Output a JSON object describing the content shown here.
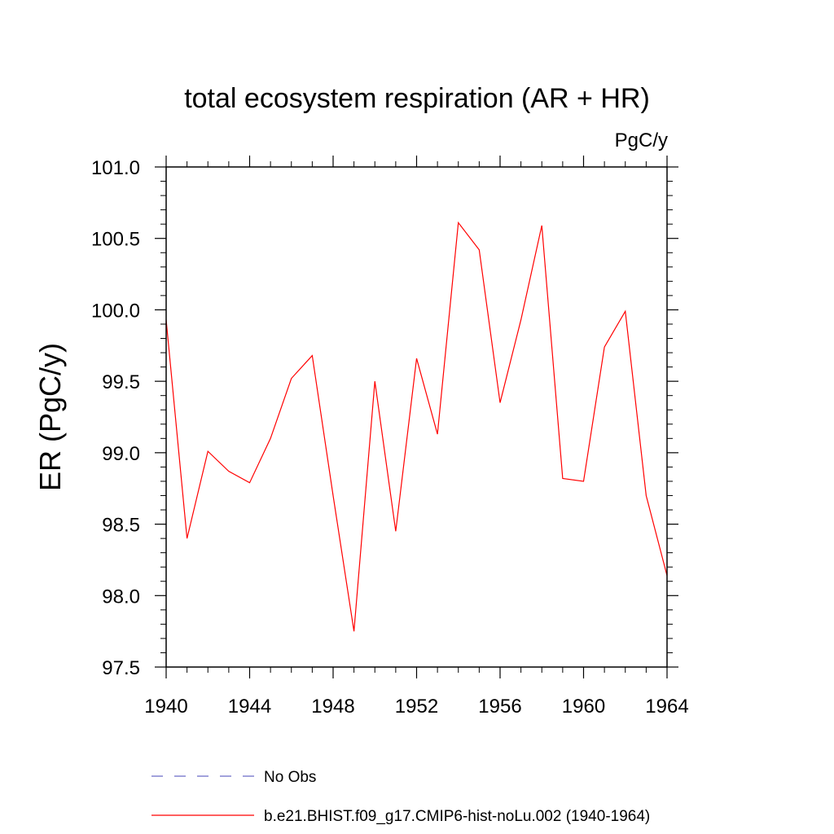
{
  "chart_data": {
    "type": "line",
    "title": "total ecosystem respiration (AR + HR)",
    "units": "PgC/y",
    "ylabel": "ER  (PgC/y)",
    "xlabel": "",
    "xlim": [
      1940,
      1964
    ],
    "ylim": [
      97.5,
      101.0
    ],
    "xticks": [
      1940,
      1944,
      1948,
      1952,
      1956,
      1960,
      1964
    ],
    "xtick_labels": [
      "1940",
      "1944",
      "1948",
      "1952",
      "1956",
      "1960",
      "1964"
    ],
    "yticks": [
      97.5,
      98.0,
      98.5,
      99.0,
      99.5,
      100.0,
      100.5,
      101.0
    ],
    "ytick_labels": [
      "97.5",
      "98.0",
      "98.5",
      "99.0",
      "99.5",
      "100.0",
      "100.5",
      "101.0"
    ],
    "grid": false,
    "legend_position": "bottom",
    "series": [
      {
        "name": "No Obs",
        "color": "#6a6ac8",
        "style": "dashed",
        "x": [],
        "y": []
      },
      {
        "name": "b.e21.BHIST.f09_g17.CMIP6-hist-noLu.002 (1940-1964)",
        "color": "#ff0000",
        "style": "solid",
        "x": [
          1940,
          1941,
          1942,
          1943,
          1944,
          1945,
          1946,
          1947,
          1948,
          1949,
          1950,
          1951,
          1952,
          1953,
          1954,
          1955,
          1956,
          1957,
          1958,
          1959,
          1960,
          1961,
          1962,
          1963,
          1964
        ],
        "y": [
          99.93,
          98.4,
          99.01,
          98.87,
          98.79,
          99.1,
          99.52,
          99.68,
          98.7,
          97.75,
          99.5,
          98.45,
          99.66,
          99.13,
          100.61,
          100.42,
          99.35,
          99.93,
          100.59,
          98.82,
          98.8,
          99.74,
          99.99,
          98.7,
          98.14
        ]
      }
    ]
  }
}
